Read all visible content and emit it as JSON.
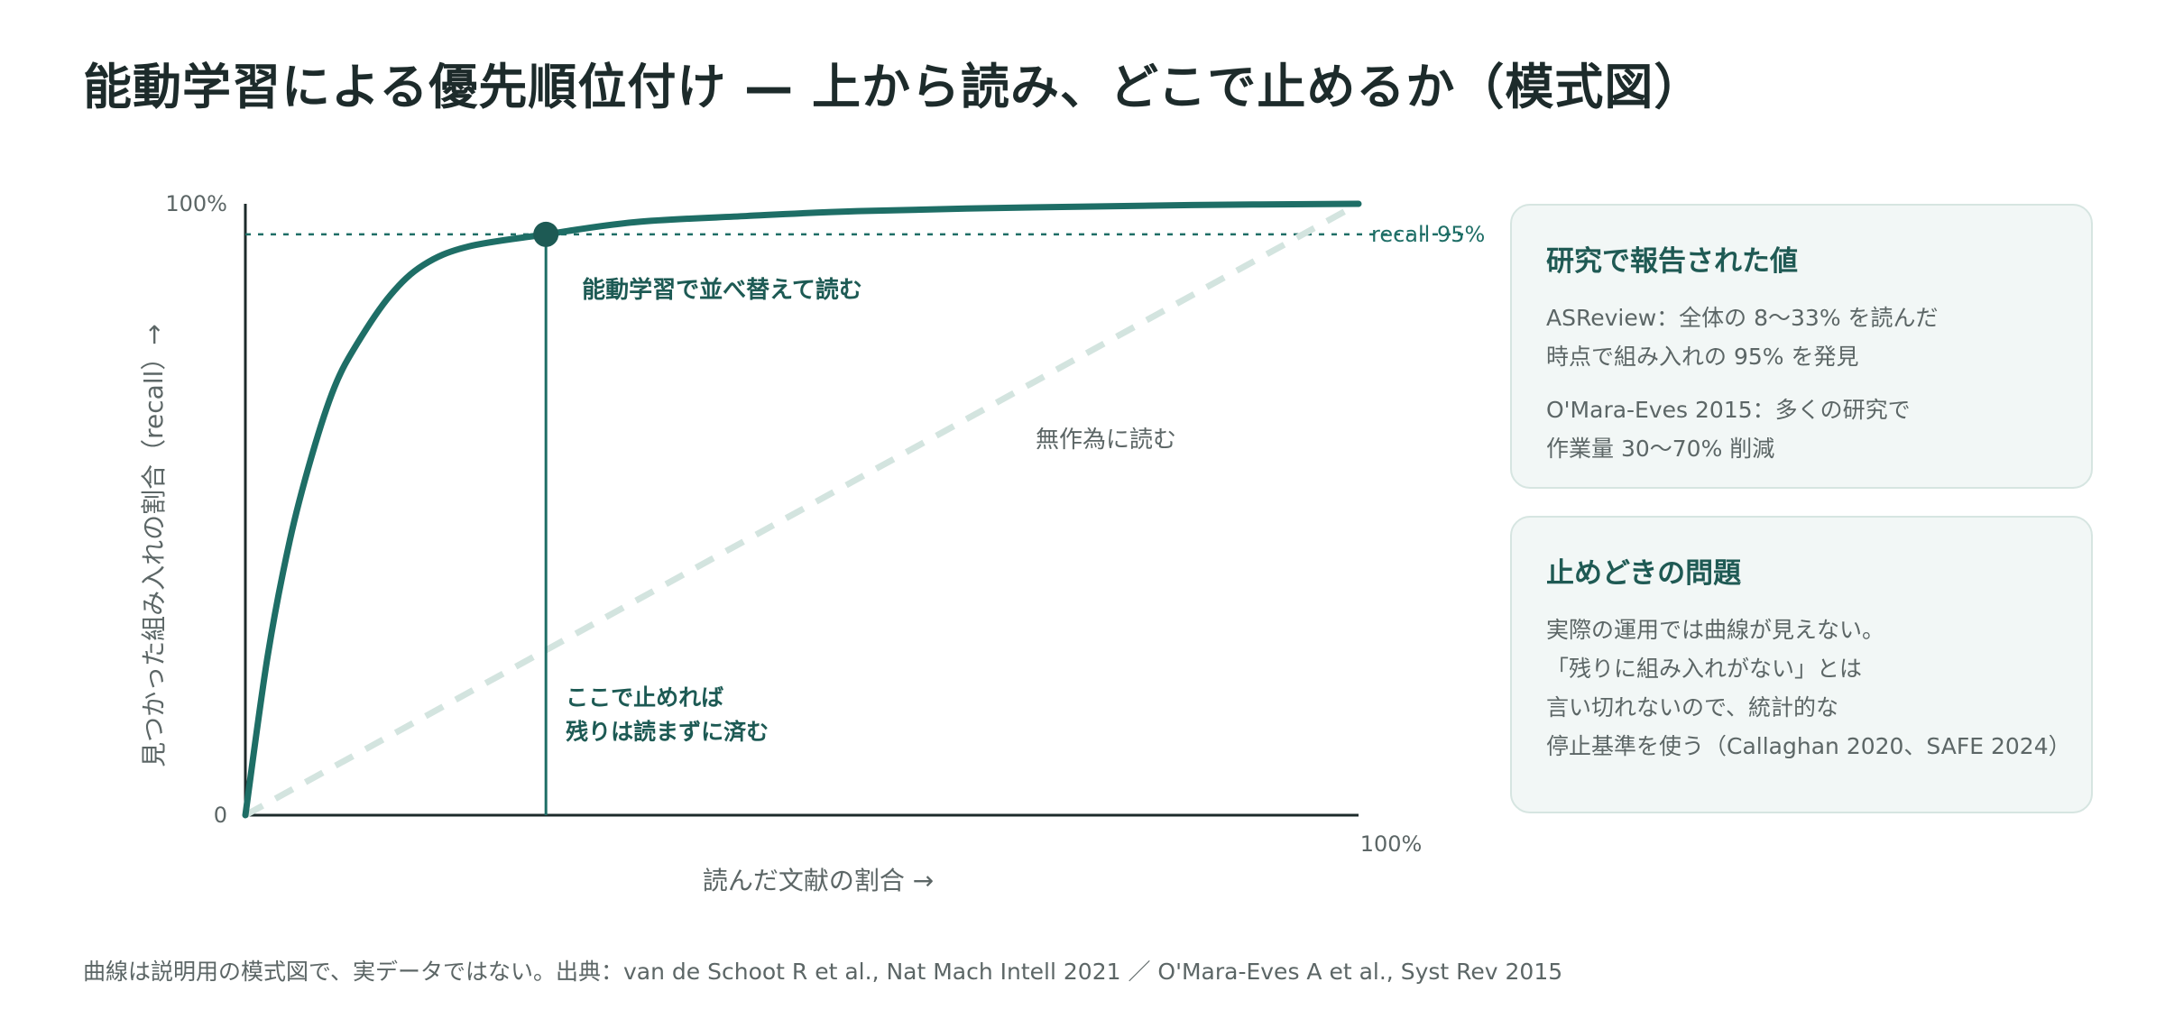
{
  "title": "能動学習による優先順位付け — 上から読み、どこで止めるか（模式図）",
  "chart_data": {
    "type": "line",
    "xlabel": "読んだ文献の割合 →",
    "ylabel": "見つかった組み入れの割合（recall）→",
    "x_ticks": {
      "end": "100%"
    },
    "y_ticks": {
      "zero": "0",
      "top": "100%"
    },
    "xlim": [
      0,
      100
    ],
    "ylim": [
      0,
      100
    ],
    "recall_line": {
      "value": 95,
      "label": "recall 95%"
    },
    "stop_point": {
      "x": 27,
      "y": 95
    },
    "series": [
      {
        "name": "能動学習で並べ替えて読む",
        "points": [
          [
            0,
            0
          ],
          [
            2,
            26
          ],
          [
            4,
            45
          ],
          [
            6,
            59
          ],
          [
            8,
            70
          ],
          [
            10,
            77
          ],
          [
            13,
            85
          ],
          [
            16,
            90
          ],
          [
            20,
            93
          ],
          [
            27,
            95
          ],
          [
            35,
            97
          ],
          [
            45,
            98
          ],
          [
            55,
            98.8
          ],
          [
            70,
            99.4
          ],
          [
            85,
            99.8
          ],
          [
            100,
            100
          ]
        ]
      },
      {
        "name": "無作為に読む",
        "points": [
          [
            0,
            0
          ],
          [
            100,
            100
          ]
        ]
      }
    ],
    "annotations": {
      "stop_line1": "ここで止めれば",
      "stop_line2": "残りは読まずに済む"
    },
    "colors": {
      "accent": "#1e6e66",
      "axis": "#1d2b2b",
      "random": "#d3e4df"
    }
  },
  "card1": {
    "title": "研究で報告された値",
    "line1": "ASReview：全体の 8〜33% を読んだ",
    "line2": "時点で組み入れの 95% を発見",
    "line3": "O'Mara-Eves 2015：多くの研究で",
    "line4": "作業量 30〜70% 削減"
  },
  "card2": {
    "title": "止めどきの問題",
    "line1": "実際の運用では曲線が見えない。",
    "line2": "「残りに組み入れがない」とは",
    "line3": "言い切れないので、統計的な",
    "line4": "停止基準を使う（Callaghan 2020、SAFE 2024）"
  },
  "footnote": "曲線は説明用の模式図で、実データではない。出典：van de Schoot R et al., Nat Mach Intell 2021 ／ O'Mara-Eves A et al., Syst Rev 2015"
}
